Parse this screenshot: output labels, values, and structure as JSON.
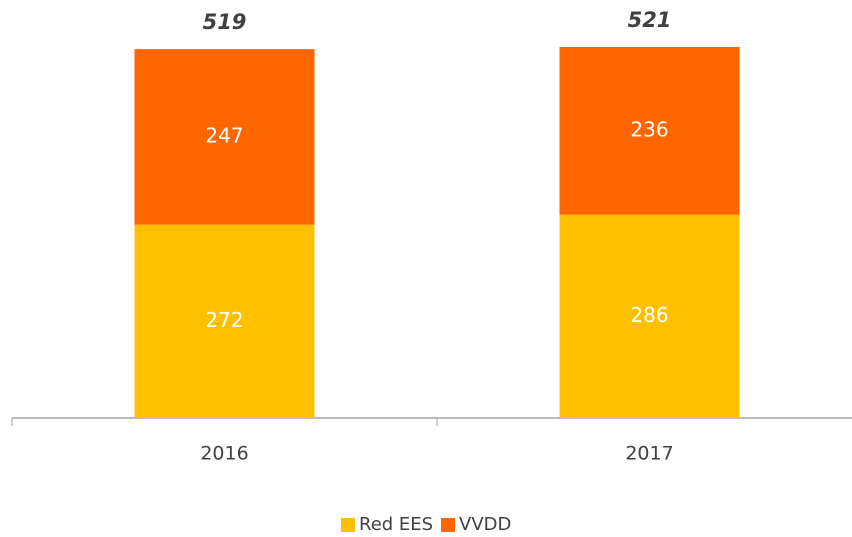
{
  "chart_data": {
    "type": "stacked-bar",
    "categories": [
      "2016",
      "2017"
    ],
    "series": [
      {
        "name": "Red EES",
        "color": "#FFC000",
        "values": [
          272,
          286
        ]
      },
      {
        "name": "VVDD",
        "color": "#FF6600",
        "values": [
          247,
          236
        ]
      }
    ],
    "totals": [
      519,
      521
    ]
  }
}
